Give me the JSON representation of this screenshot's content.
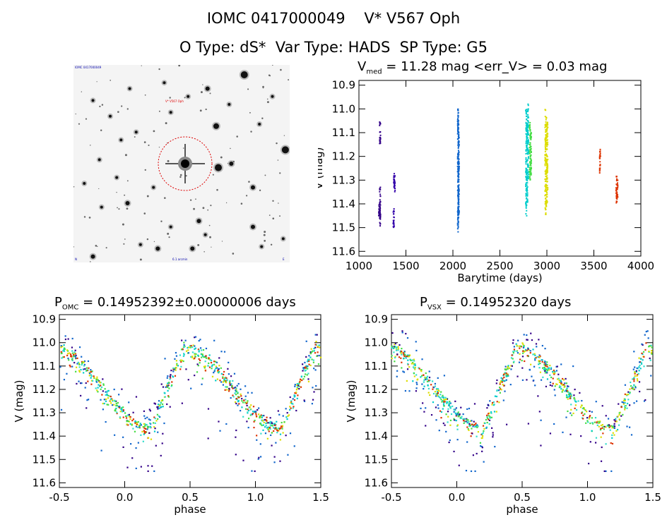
{
  "header": {
    "title_line1": "IOMC 0417000049    V* V567 Oph",
    "title_line2": "O Type: dS*  Var Type: HADS  SP Type: G5"
  },
  "finder_chart": {
    "label_top_left": "IOMC 0417000049",
    "label_target": "V* V567 Oph",
    "label_bottom_center": "6.1 arcmin",
    "label_bottom_left": "N",
    "label_bottom_right": "E",
    "circle_color": "#dd0000"
  },
  "panels": {
    "lightcurve": {
      "title_prefix": "V",
      "title_sub": "med",
      "title_rest": " = 11.28 mag <err_V> = 0.03 mag"
    },
    "phase_omc": {
      "title_prefix": "P",
      "title_sub": "OMC",
      "title_rest": " = 0.14952392±0.00000006 days"
    },
    "phase_vsx": {
      "title_prefix": "P",
      "title_sub": "VSX",
      "title_rest": " = 0.14952320 days"
    }
  },
  "chart_data": [
    {
      "type": "scatter",
      "name": "light curve",
      "xlabel": "Barytime (days)",
      "ylabel": "V (mag)",
      "xlim": [
        1000,
        4000
      ],
      "ylim": [
        11.62,
        10.88
      ],
      "xticks": [
        1000,
        1500,
        2000,
        2500,
        3000,
        3500,
        4000
      ],
      "xtick_labels": [
        "1000",
        "1500",
        "2000",
        "2500",
        "3000",
        "3500",
        "4000"
      ],
      "yticks": [
        10.9,
        11.0,
        11.1,
        11.2,
        11.3,
        11.4,
        11.5,
        11.6
      ],
      "ytick_labels": [
        "10.9",
        "11.0",
        "11.1",
        "11.2",
        "11.3",
        "11.4",
        "11.5",
        "11.6"
      ],
      "series": [
        {
          "color": "#330088",
          "x": [
            1225,
            1225,
            1225,
            1215
          ],
          "y_range": [
            [
              11.05,
              11.15
            ],
            [
              11.33,
              11.48
            ],
            [
              11.38,
              11.5
            ],
            [
              11.4,
              11.45
            ]
          ]
        },
        {
          "color": "#3300aa",
          "x": [
            1375,
            1380,
            1370
          ],
          "y_range": [
            [
              11.27,
              11.33
            ],
            [
              11.28,
              11.35
            ],
            [
              11.42,
              11.5
            ]
          ]
        },
        {
          "color": "#1166cc",
          "x": [
            2055,
            2058,
            2062
          ],
          "y_range": [
            [
              11.0,
              11.52
            ],
            [
              11.05,
              11.48
            ],
            [
              11.1,
              11.45
            ]
          ]
        },
        {
          "color": "#00cccc",
          "x": [
            2780,
            2790,
            2800
          ],
          "y_range": [
            [
              11.0,
              11.45
            ],
            [
              11.05,
              11.4
            ],
            [
              10.98,
              11.3
            ]
          ]
        },
        {
          "color": "#44dd44",
          "x": [
            2820,
            2830
          ],
          "y_range": [
            [
              11.05,
              11.3
            ],
            [
              11.1,
              11.28
            ]
          ]
        },
        {
          "color": "#dddd00",
          "x": [
            2985,
            2995,
            3005
          ],
          "y_range": [
            [
              11.0,
              11.45
            ],
            [
              11.03,
              11.42
            ],
            [
              11.05,
              11.4
            ]
          ]
        },
        {
          "color": "#dd3300",
          "x": [
            3565,
            3740,
            3750
          ],
          "y_range": [
            [
              11.17,
              11.27
            ],
            [
              11.28,
              11.4
            ],
            [
              11.3,
              11.38
            ]
          ]
        }
      ]
    },
    {
      "type": "scatter",
      "name": "phase OMC",
      "xlabel": "phase",
      "ylabel": "V (mag)",
      "xlim": [
        -0.5,
        1.5
      ],
      "ylim": [
        11.62,
        10.88
      ],
      "xticks": [
        -0.5,
        0.0,
        0.5,
        1.0,
        1.5
      ],
      "xtick_labels": [
        "-0.5",
        "0.0",
        "0.5",
        "1.0",
        "1.5"
      ],
      "yticks": [
        10.9,
        11.0,
        11.1,
        11.2,
        11.3,
        11.4,
        11.5,
        11.6
      ],
      "ytick_labels": [
        "10.9",
        "11.0",
        "11.1",
        "11.2",
        "11.3",
        "11.4",
        "11.5",
        "11.6"
      ],
      "curve": {
        "max_mag_phase": 0.45,
        "min_mag": 11.02,
        "max_mag": 11.37,
        "scatter": 0.09
      },
      "colors": [
        "#1166cc",
        "#00cccc",
        "#44dd44",
        "#dddd00",
        "#dd3300",
        "#330088",
        "#33ddcc"
      ]
    },
    {
      "type": "scatter",
      "name": "phase VSX",
      "xlabel": "phase",
      "ylabel": "V (mag)",
      "xlim": [
        -0.5,
        1.5
      ],
      "ylim": [
        11.62,
        10.88
      ],
      "xticks": [
        -0.5,
        0.0,
        0.5,
        1.0,
        1.5
      ],
      "xtick_labels": [
        "-0.5",
        "0.0",
        "0.5",
        "1.0",
        "1.5"
      ],
      "yticks": [
        10.9,
        11.0,
        11.1,
        11.2,
        11.3,
        11.4,
        11.5,
        11.6
      ],
      "ytick_labels": [
        "10.9",
        "11.0",
        "11.1",
        "11.2",
        "11.3",
        "11.4",
        "11.5",
        "11.6"
      ],
      "curve": {
        "max_mag_phase": 0.45,
        "min_mag": 11.02,
        "max_mag": 11.37,
        "scatter": 0.09
      },
      "colors": [
        "#1166cc",
        "#00cccc",
        "#44dd44",
        "#dddd00",
        "#dd3300",
        "#330088",
        "#33ddcc"
      ]
    }
  ]
}
